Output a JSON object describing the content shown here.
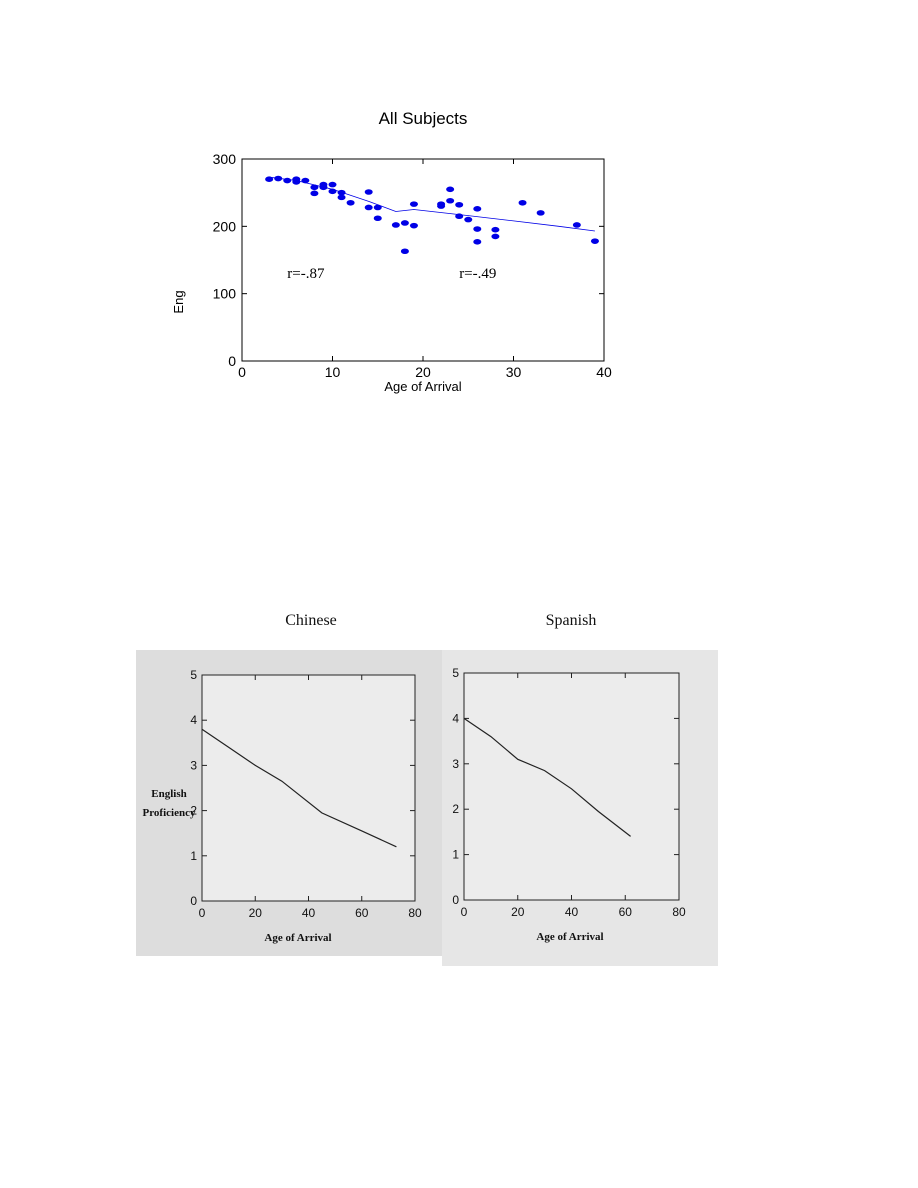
{
  "chart_data": [
    {
      "id": "top",
      "type": "scatter",
      "title": "All Subjects",
      "xlabel": "Age of Arrival",
      "ylabel": "Eng",
      "xlim": [
        0,
        40
      ],
      "ylim": [
        0,
        300
      ],
      "xticks": [
        0,
        10,
        20,
        30,
        40
      ],
      "yticks": [
        0,
        100,
        200,
        300
      ],
      "color": "#0000e6",
      "points": [
        [
          3,
          270
        ],
        [
          4,
          271
        ],
        [
          5,
          268
        ],
        [
          6,
          270
        ],
        [
          6,
          266
        ],
        [
          7,
          268
        ],
        [
          8,
          258
        ],
        [
          8,
          249
        ],
        [
          9,
          262
        ],
        [
          9,
          258
        ],
        [
          10,
          262
        ],
        [
          10,
          252
        ],
        [
          11,
          250
        ],
        [
          11,
          243
        ],
        [
          12,
          235
        ],
        [
          14,
          251
        ],
        [
          14,
          228
        ],
        [
          15,
          228
        ],
        [
          15,
          212
        ],
        [
          17,
          202
        ],
        [
          18,
          205
        ],
        [
          18,
          163
        ],
        [
          19,
          233
        ],
        [
          19,
          201
        ],
        [
          22,
          230
        ],
        [
          22,
          233
        ],
        [
          23,
          255
        ],
        [
          23,
          238
        ],
        [
          24,
          232
        ],
        [
          24,
          215
        ],
        [
          25,
          210
        ],
        [
          26,
          226
        ],
        [
          26,
          196
        ],
        [
          26,
          177
        ],
        [
          28,
          195
        ],
        [
          28,
          185
        ],
        [
          31,
          235
        ],
        [
          33,
          220
        ],
        [
          37,
          202
        ],
        [
          39,
          178
        ]
      ],
      "fit_line": [
        [
          3,
          273
        ],
        [
          6,
          268
        ],
        [
          10,
          255
        ],
        [
          14,
          237
        ],
        [
          17,
          222
        ],
        [
          19,
          225
        ],
        [
          25,
          216
        ],
        [
          30,
          208
        ],
        [
          35,
          200
        ],
        [
          39,
          193
        ]
      ],
      "annotations": [
        {
          "text": "r=-.87",
          "x": 5,
          "y": 123
        },
        {
          "text": "r=-.49",
          "x": 24,
          "y": 123
        }
      ]
    },
    {
      "id": "chinese",
      "type": "line",
      "title": "Chinese",
      "xlabel": "Age of Arrival",
      "ylabel_lines": [
        "English",
        "Proficiency"
      ],
      "xlim": [
        0,
        80
      ],
      "ylim": [
        0,
        5
      ],
      "xticks": [
        0,
        20,
        40,
        60,
        80
      ],
      "yticks": [
        0,
        1,
        2,
        3,
        4,
        5
      ],
      "x": [
        0,
        10,
        20,
        30,
        45,
        60,
        73
      ],
      "y": [
        3.8,
        3.4,
        3.0,
        2.65,
        1.95,
        1.55,
        1.2
      ]
    },
    {
      "id": "spanish",
      "type": "line",
      "title": "Spanish",
      "xlabel": "Age of Arrival",
      "xlim": [
        0,
        80
      ],
      "ylim": [
        0,
        5
      ],
      "xticks": [
        0,
        20,
        40,
        60,
        80
      ],
      "yticks": [
        0,
        1,
        2,
        3,
        4,
        5
      ],
      "x": [
        0,
        10,
        20,
        30,
        40,
        50,
        62
      ],
      "y": [
        4.0,
        3.6,
        3.1,
        2.85,
        2.45,
        1.95,
        1.4
      ]
    }
  ]
}
